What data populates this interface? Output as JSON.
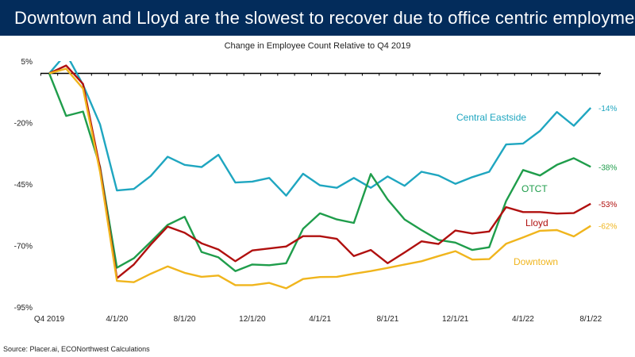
{
  "header": {
    "title": "Downtown and Lloyd are the slowest to recover due to office centric employment"
  },
  "footer": {
    "source": "Source: Placer.ai, ECONorthwest Calculations"
  },
  "chart_data": {
    "type": "line",
    "title": "Change in Employee Count Relative to Q4 2019",
    "xlabel": "",
    "ylabel": "",
    "ylim": [
      -95,
      5
    ],
    "yticks": [
      5,
      -20,
      -45,
      -70,
      -95
    ],
    "ytick_labels": [
      "5%",
      "-20%",
      "-45%",
      "-70%",
      "-95%"
    ],
    "x": [
      "Q4 2019",
      "1/1/20",
      "2/1/20",
      "3/1/20",
      "4/1/20",
      "5/1/20",
      "6/1/20",
      "7/1/20",
      "8/1/20",
      "9/1/20",
      "10/1/20",
      "11/1/20",
      "12/1/20",
      "1/1/21",
      "2/1/21",
      "3/1/21",
      "4/1/21",
      "5/1/21",
      "6/1/21",
      "7/1/21",
      "8/1/21",
      "9/1/21",
      "10/1/21",
      "11/1/21",
      "12/1/21",
      "1/1/22",
      "2/1/22",
      "3/1/22",
      "4/1/22",
      "5/1/22",
      "6/1/22",
      "7/1/22",
      "8/1/22"
    ],
    "xtick_labels": [
      "Q4 2019",
      "4/1/20",
      "8/1/20",
      "12/1/20",
      "4/1/21",
      "8/1/21",
      "12/1/21",
      "4/1/22",
      "8/1/22"
    ],
    "grid": false,
    "series": [
      {
        "name": "Central Eastside",
        "color": "#1fa6c0",
        "end_label": "-14%",
        "values": [
          0,
          8,
          -4.6,
          -20.7,
          -47.6,
          -47,
          -41.7,
          -33.9,
          -37.2,
          -38.1,
          -33.1,
          -44.4,
          -44,
          -42.5,
          -49.7,
          -40.8,
          -45.5,
          -46.5,
          -42.5,
          -46.5,
          -41.9,
          -45.7,
          -40,
          -41.5,
          -44.9,
          -42.2,
          -40,
          -28.9,
          -28.5,
          -23.4,
          -15.7,
          -21.3,
          -14
        ]
      },
      {
        "name": "OTCT",
        "color": "#1f9d4b",
        "end_label": "-38%",
        "values": [
          0,
          -17.3,
          -15.5,
          -37.9,
          -79,
          -75.2,
          -68.5,
          -61.6,
          -58.3,
          -72.6,
          -74.8,
          -80.4,
          -77.7,
          -78,
          -77.2,
          -63.2,
          -56.9,
          -59.4,
          -60.8,
          -40.9,
          -51.3,
          -59.4,
          -63.7,
          -67.7,
          -68.8,
          -71.8,
          -70.7,
          -51.9,
          -39.3,
          -41.5,
          -37.2,
          -34.5,
          -38
        ]
      },
      {
        "name": "Lloyd",
        "color": "#b0100f",
        "end_label": "-53%",
        "values": [
          0,
          3.2,
          -4.3,
          -38.5,
          -83.3,
          -77.7,
          -69.6,
          -62.3,
          -64.8,
          -69.1,
          -71.6,
          -76.4,
          -72,
          -71.2,
          -70.4,
          -66.2,
          -66.2,
          -67.3,
          -74.3,
          -71.8,
          -77.2,
          -72.8,
          -68.3,
          -69.4,
          -63.9,
          -65.1,
          -64.3,
          -54.4,
          -56.4,
          -56.4,
          -57,
          -56.8,
          -53
        ]
      },
      {
        "name": "Downtown",
        "color": "#f0b51d",
        "end_label": "-62%",
        "values": [
          0,
          1.9,
          -6.2,
          -40,
          -84.4,
          -84.9,
          -81.5,
          -78.5,
          -81.1,
          -82.7,
          -82.2,
          -86.1,
          -86.1,
          -85.2,
          -87.4,
          -83.6,
          -82.8,
          -82.7,
          -81.5,
          -80.4,
          -79.1,
          -77.7,
          -76.4,
          -74.3,
          -72.3,
          -75.7,
          -75.5,
          -69.3,
          -66.7,
          -64,
          -63.7,
          -66.3,
          -62
        ]
      }
    ]
  }
}
